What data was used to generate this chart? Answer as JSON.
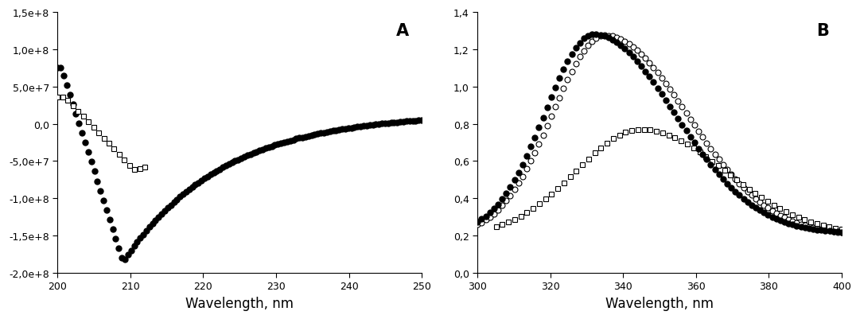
{
  "panel_A": {
    "xlabel": "Wavelength, nm",
    "xlim": [
      200,
      250
    ],
    "ylim": [
      -200000000.0,
      150000000.0
    ],
    "yticks": [
      -200000000.0,
      -150000000.0,
      -100000000.0,
      -50000000.0,
      0.0,
      50000000.0,
      100000000.0,
      150000000.0
    ],
    "ytick_labels": [
      "-2,0e+8",
      "-1,5e+8",
      "-1,0e+8",
      "-5,0e+7",
      "0,0",
      "5,0e+7",
      "1,0e+8",
      "1,5e+8"
    ],
    "xticks": [
      200,
      210,
      220,
      230,
      240,
      250
    ],
    "xtick_labels": [
      "200",
      "210",
      "220",
      "230",
      "240",
      "250"
    ],
    "label": "A"
  },
  "panel_B": {
    "xlabel": "Wavelength, nm",
    "xlim": [
      300,
      400
    ],
    "ylim": [
      0.0,
      1.4
    ],
    "yticks": [
      0.0,
      0.2,
      0.4,
      0.6,
      0.8,
      1.0,
      1.2,
      1.4
    ],
    "ytick_labels": [
      "0,0",
      "0,2",
      "0,4",
      "0,6",
      "0,8",
      "1,0",
      "1,2",
      "1,4"
    ],
    "xticks": [
      300,
      320,
      340,
      360,
      380,
      400
    ],
    "xtick_labels": [
      "300",
      "320",
      "340",
      "360",
      "380",
      "400"
    ],
    "label": "B"
  },
  "label_fontsize": 12,
  "tick_fontsize": 9,
  "marker_size_filled": 5,
  "marker_size_open": 4,
  "background_color": "#ffffff"
}
